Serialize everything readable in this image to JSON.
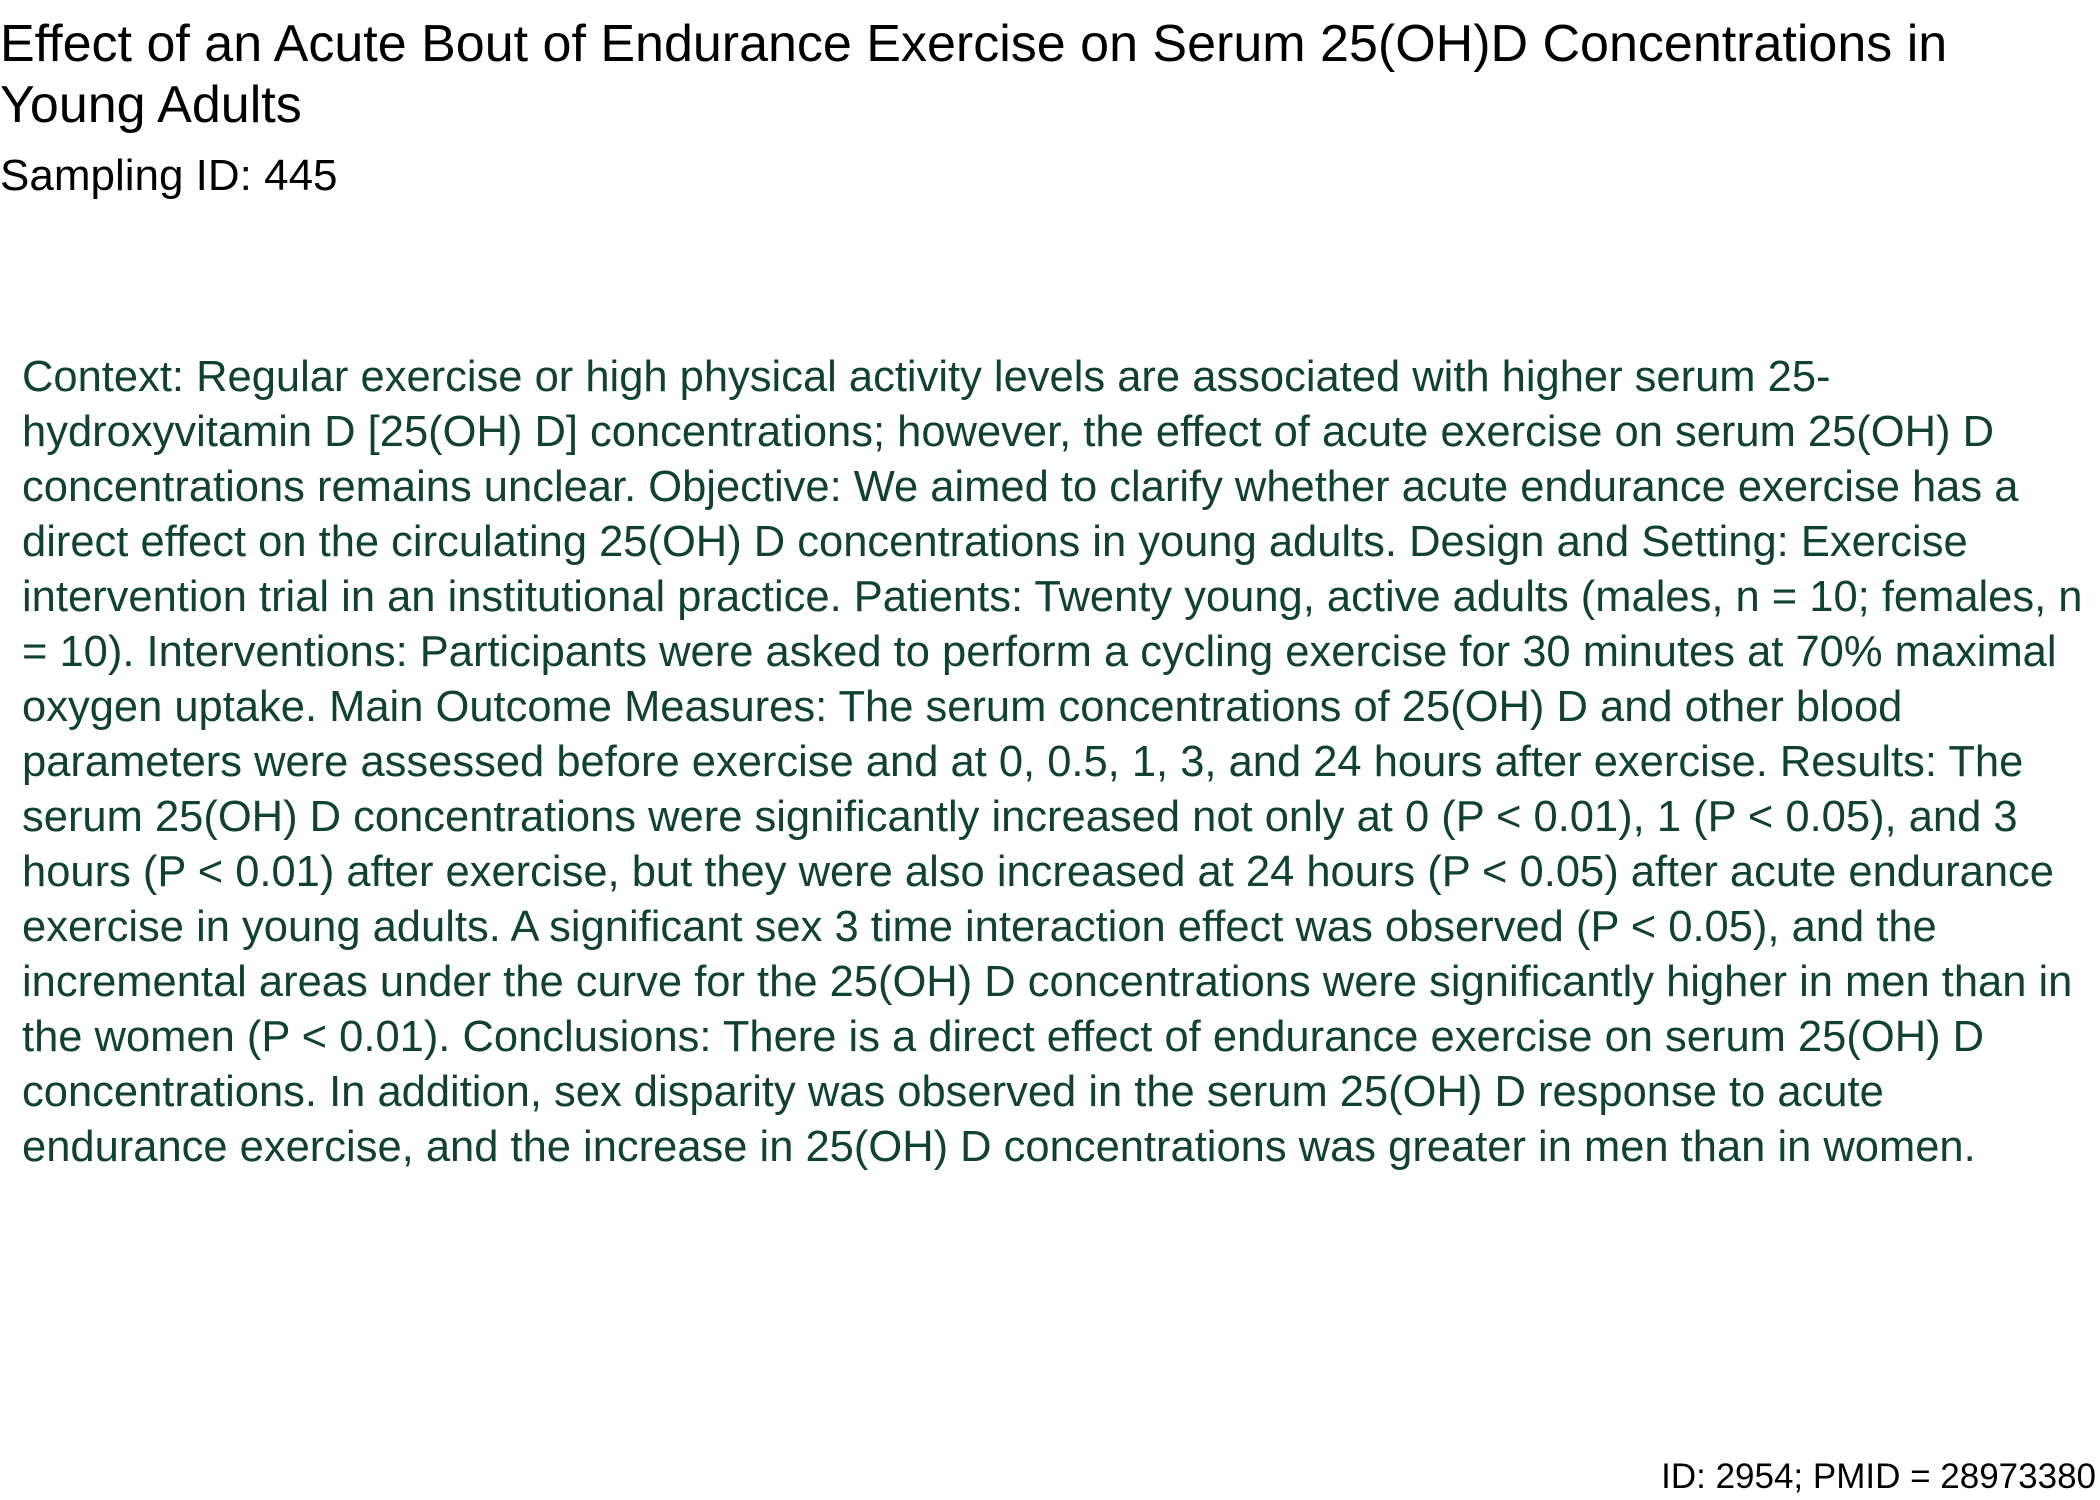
{
  "document": {
    "title": "Effect of an Acute Bout of Endurance Exercise on Serum 25(OH)D Concentrations in Young Adults",
    "sampling_id": "Sampling ID: 445",
    "abstract": "Context: Regular exercise or high physical activity levels are associated with higher serum 25-hydroxyvitamin D [25(OH) D] concentrations; however, the effect of acute exercise on serum 25(OH) D concentrations remains unclear. Objective: We aimed to clarify whether acute endurance exercise has a direct effect on the circulating 25(OH) D concentrations in young adults. Design and Setting: Exercise intervention trial in an institutional practice. Patients: Twenty young, active adults (males, n = 10; females, n = 10). Interventions: Participants were asked to perform a cycling exercise for 30 minutes at 70% maximal oxygen uptake. Main Outcome Measures: The serum concentrations of 25(OH) D and other blood parameters were assessed before exercise and at 0, 0.5, 1, 3, and 24 hours after exercise. Results: The serum 25(OH) D concentrations were significantly increased not only at 0 (P < 0.01), 1 (P < 0.05), and 3 hours (P < 0.01) after exercise, but they were also increased at 24 hours (P < 0.05) after acute endurance exercise in young adults. A significant sex 3 time interaction effect was observed (P < 0.05), and the incremental areas under the curve for the 25(OH) D concentrations were significantly higher in men than in the women (P < 0.01). Conclusions: There is a direct effect of endurance exercise on serum 25(OH) D concentrations. In addition, sex disparity was observed in the serum 25(OH) D response to acute endurance exercise, and the increase in 25(OH) D concentrations was greater in men than in women.",
    "footer_id": "ID: 2954; PMID = 28973380"
  },
  "colors": {
    "title_text": "#000000",
    "abstract_text": "#0f4232",
    "background": "#ffffff"
  }
}
